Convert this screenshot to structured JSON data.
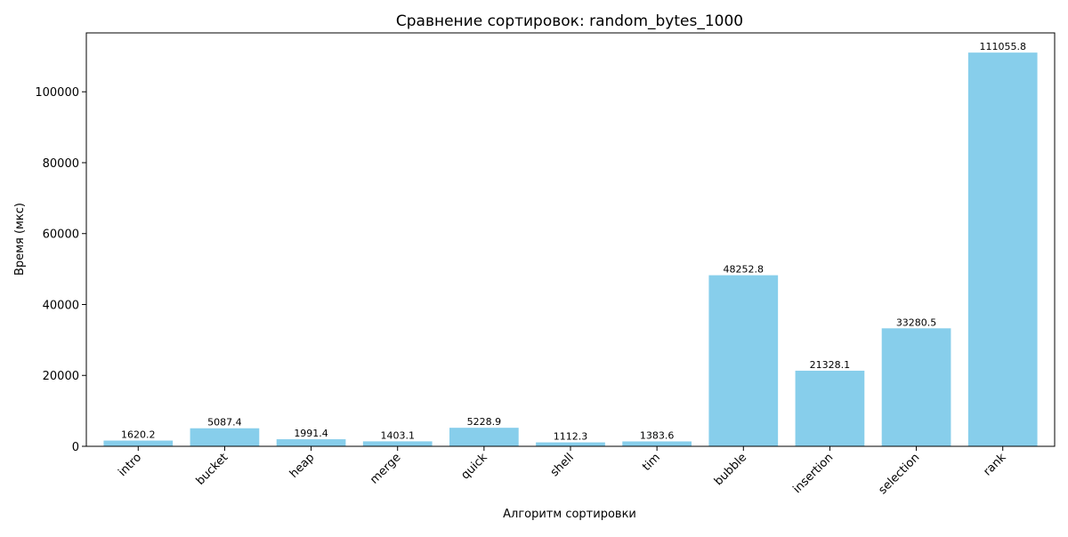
{
  "chart_data": {
    "type": "bar",
    "title": "Сравнение сортировок: random_bytes_1000",
    "xlabel": "Алгоритм сортировки",
    "ylabel": "Время (мкс)",
    "categories": [
      "intro",
      "bucket",
      "heap",
      "merge",
      "quick",
      "shell",
      "tim",
      "bubble",
      "insertion",
      "selection",
      "rank"
    ],
    "values": [
      1620.2,
      5087.4,
      1991.4,
      1403.1,
      5228.9,
      1112.3,
      1383.6,
      48252.8,
      21328.1,
      33280.5,
      111055.8
    ],
    "value_labels": [
      "1620.2",
      "5087.4",
      "1991.4",
      "1403.1",
      "5228.9",
      "1112.3",
      "1383.6",
      "48252.8",
      "21328.1",
      "33280.5",
      "111055.8"
    ],
    "yticks": [
      0,
      20000,
      40000,
      60000,
      80000,
      100000
    ],
    "ylim": [
      0,
      116608.6
    ],
    "bar_color": "#87ceeb",
    "grid": false,
    "legend": "none",
    "xtick_rotation_deg": 45
  }
}
